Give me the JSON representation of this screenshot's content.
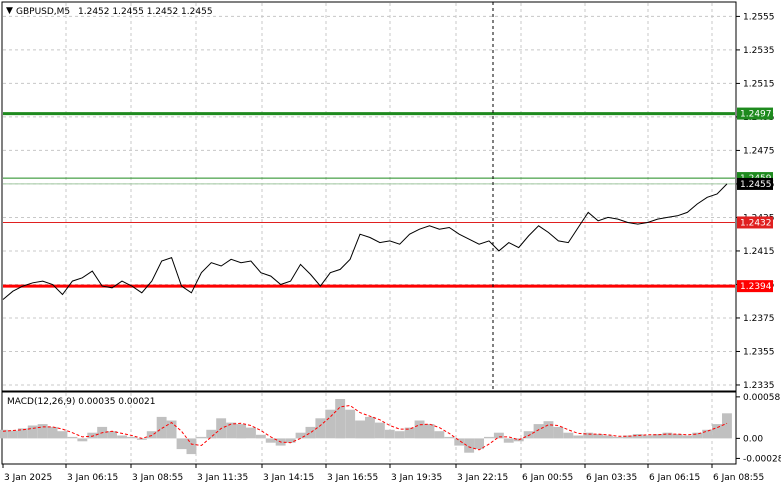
{
  "header": {
    "symbol_label": "GBPUSD,M5",
    "ohlc": "1.2452 1.2455 1.2452 1.2455",
    "collapse_glyph": "▼"
  },
  "price_axis": {
    "ticks": [
      "1.2555",
      "1.2535",
      "1.2515",
      "1.2495",
      "1.2475",
      "1.2455",
      "1.2435",
      "1.2415",
      "1.2395",
      "1.2375",
      "1.2355",
      "1.2335"
    ],
    "range": [
      1.2332,
      1.2563
    ]
  },
  "levels": [
    {
      "name": "level-1-2497",
      "value": 1.2497,
      "label": "1.2497",
      "color": "#1e8a1e",
      "width": 3
    },
    {
      "name": "level-1-2459",
      "value": 1.24585,
      "label": "1.2459",
      "color": "#1e8a1e",
      "width": 1
    },
    {
      "name": "level-1-2432",
      "value": 1.2432,
      "label": "1.2432",
      "color": "#e02020",
      "width": 1
    },
    {
      "name": "level-1-2394",
      "value": 1.2394,
      "label": "1.2394",
      "color": "#ff0000",
      "width": 3
    }
  ],
  "current_price": {
    "value": 1.2455,
    "label": "1.2455",
    "color": "#000000"
  },
  "time_axis": {
    "labels": [
      "3 Jan 2025",
      "3 Jan 06:15",
      "3 Jan 08:55",
      "3 Jan 11:35",
      "3 Jan 14:15",
      "3 Jan 16:55",
      "3 Jan 19:35",
      "3 Jan 22:15",
      "6 Jan 00:55",
      "6 Jan 03:35",
      "6 Jan 06:15",
      "6 Jan 08:55"
    ]
  },
  "macd": {
    "label": "MACD(12,26,9) 0.00035 0.00021",
    "ticks": [
      "0.00058",
      "0.00",
      "-0.00028"
    ],
    "range": [
      -0.00033,
      0.00062
    ],
    "histogram_color": "#c0c0c0",
    "signal_color": "#ff0000"
  },
  "chart_data": {
    "type": "line",
    "title": "GBPUSD,M5 1.2452 1.2455 1.2452 1.2455",
    "x_labels": [
      "3 Jan 2025",
      "3 Jan 06:15",
      "3 Jan 08:55",
      "3 Jan 11:35",
      "3 Jan 14:15",
      "3 Jan 16:55",
      "3 Jan 19:35",
      "3 Jan 22:15",
      "6 Jan 00:55",
      "6 Jan 03:35",
      "6 Jan 06:15",
      "6 Jan 08:55"
    ],
    "series": [
      {
        "name": "GBPUSD,M5",
        "values": [
          1.2386,
          1.2391,
          1.2394,
          1.2396,
          1.2397,
          1.2395,
          1.2389,
          1.2397,
          1.2399,
          1.2403,
          1.2394,
          1.2393,
          1.2397,
          1.2394,
          1.239,
          1.2397,
          1.2409,
          1.2411,
          1.2394,
          1.239,
          1.2402,
          1.2408,
          1.2406,
          1.241,
          1.2408,
          1.2409,
          1.2402,
          1.24,
          1.2395,
          1.2397,
          1.2407,
          1.2401,
          1.2394,
          1.2402,
          1.2404,
          1.241,
          1.2425,
          1.2423,
          1.242,
          1.2421,
          1.2419,
          1.2425,
          1.2428,
          1.243,
          1.2428,
          1.2429,
          1.2425,
          1.2422,
          1.2419,
          1.2421,
          1.2415,
          1.242,
          1.2417,
          1.2424,
          1.243,
          1.2426,
          1.2421,
          1.242,
          1.2429,
          1.2438,
          1.2433,
          1.2435,
          1.2434,
          1.2432,
          1.2431,
          1.2432,
          1.2434,
          1.2435,
          1.2436,
          1.2438,
          1.2443,
          1.2447,
          1.2449,
          1.2455
        ]
      }
    ],
    "ylim": [
      1.2332,
      1.2563
    ],
    "macd_histogram": [
      0.00012,
      0.00011,
      0.00014,
      0.00018,
      0.0002,
      0.00016,
      0.0001,
      2e-05,
      -4e-05,
      8e-05,
      0.00016,
      0.0001,
      4e-05,
      2e-05,
      -2e-05,
      0.0001,
      0.0003,
      0.00025,
      -0.00015,
      -0.00022,
      2e-05,
      0.00012,
      0.00028,
      0.00022,
      0.0002,
      0.00015,
      5e-05,
      -6e-05,
      -0.0001,
      -6e-05,
      8e-05,
      0.00016,
      0.00028,
      0.0004,
      0.00055,
      0.0004,
      0.00025,
      0.0003,
      0.00022,
      0.00012,
      0.0001,
      0.00015,
      0.00025,
      0.0002,
      0.0001,
      2e-05,
      -0.0001,
      -0.0002,
      -0.00015,
      2e-05,
      8e-05,
      -6e-05,
      -4e-05,
      0.0001,
      0.0002,
      0.00024,
      0.00016,
      8e-05,
      4e-05,
      8e-05,
      6e-05,
      4e-05,
      2e-05,
      4e-05,
      6e-05,
      4e-05,
      6e-05,
      8e-05,
      6e-05,
      4e-05,
      8e-05,
      0.00012,
      0.0002,
      0.00035
    ],
    "macd_signal": [
      0.0001,
      0.00011,
      0.00012,
      0.00014,
      0.00016,
      0.00016,
      0.00013,
      8e-05,
      2e-05,
      3e-05,
      8e-05,
      0.0001,
      7e-05,
      4e-05,
      0.0,
      4e-05,
      0.00014,
      0.00022,
      0.0001,
      -8e-05,
      -0.0001,
      2e-05,
      0.00014,
      0.0002,
      0.00021,
      0.00018,
      0.00011,
      2e-05,
      -5e-05,
      -6e-05,
      0.0,
      8e-05,
      0.00018,
      0.0003,
      0.00044,
      0.00046,
      0.00036,
      0.00031,
      0.00026,
      0.00018,
      0.00013,
      0.00013,
      0.00019,
      0.0002,
      0.00015,
      7e-05,
      -3e-05,
      -0.00012,
      -0.00016,
      -8e-05,
      2e-05,
      2e-05,
      -2e-05,
      4e-05,
      0.00012,
      0.00019,
      0.00018,
      0.00012,
      7e-05,
      6e-05,
      6e-05,
      5e-05,
      3e-05,
      3e-05,
      4e-05,
      5e-05,
      5e-05,
      6e-05,
      6e-05,
      5e-05,
      6e-05,
      0.0001,
      0.00015,
      0.00021
    ]
  }
}
